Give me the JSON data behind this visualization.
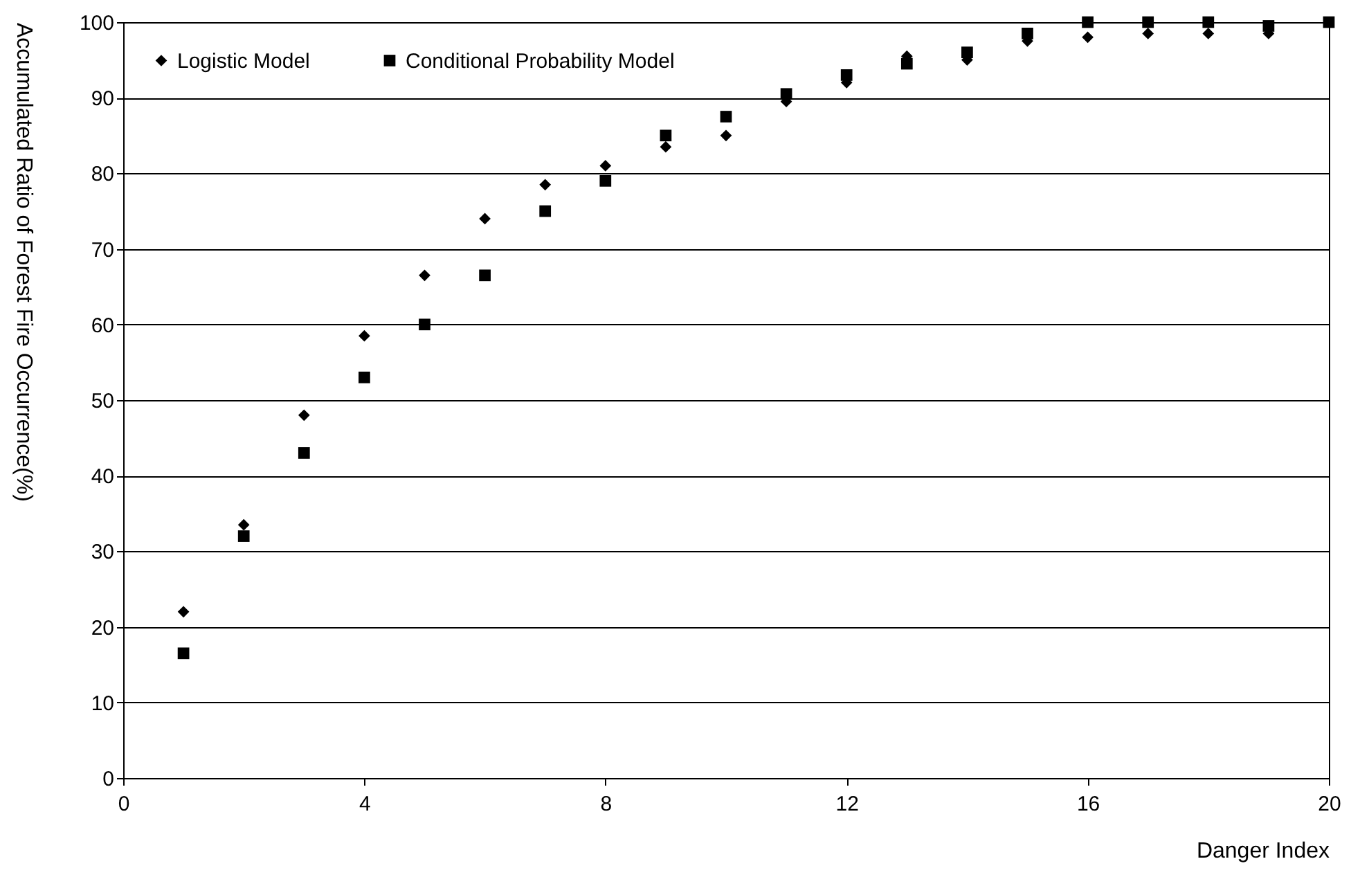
{
  "chart_data": {
    "type": "scatter",
    "xlabel": "Danger Index",
    "ylabel": "Accumulated Ratio of Forest Fire Occurrence(%)",
    "x": [
      1,
      2,
      3,
      4,
      5,
      6,
      7,
      8,
      9,
      10,
      11,
      12,
      13,
      14,
      15,
      16,
      17,
      18,
      19,
      20
    ],
    "series": [
      {
        "name": "Logistic Model",
        "color": "#000000",
        "marker": "diamond",
        "values": [
          22,
          33.5,
          48,
          58.5,
          66.5,
          74,
          78.5,
          81,
          83.5,
          85,
          89.5,
          92,
          95.5,
          95,
          97.5,
          98,
          98.5,
          98.5,
          98.5,
          null
        ]
      },
      {
        "name": "Conditional Probability Model",
        "color": "#000000",
        "marker": "square",
        "values": [
          16.5,
          32,
          43,
          53,
          60,
          66.5,
          75,
          79,
          85,
          87.5,
          90.5,
          93,
          94.5,
          96,
          98.5,
          100,
          100,
          100,
          99.5,
          100
        ]
      }
    ],
    "xlim": [
      0,
      20
    ],
    "xticks": [
      0,
      4,
      8,
      12,
      16,
      20
    ],
    "ylim": [
      0,
      100
    ],
    "yticks": [
      0,
      10,
      20,
      30,
      40,
      50,
      60,
      70,
      80,
      90,
      100
    ],
    "grid": "y",
    "legend": "top left"
  }
}
